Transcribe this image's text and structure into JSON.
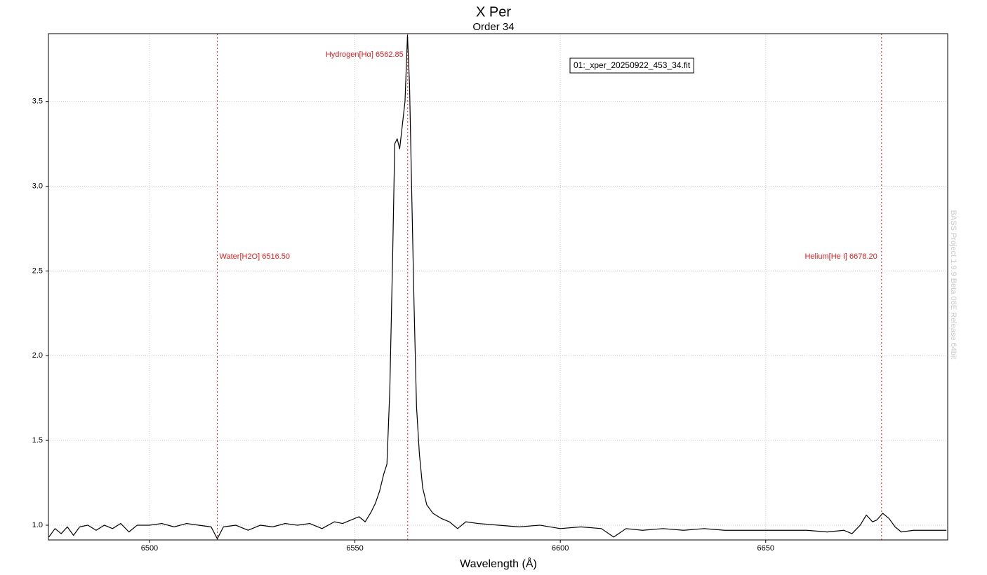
{
  "chart_data": {
    "type": "line",
    "title": "X Per",
    "subtitle": "Order 34",
    "x_label": "Wavelength (Å)",
    "watermark": "BASS Project 1.9.9 Beta 08E Release 64bit",
    "xlim": [
      6475.4,
      6694.3
    ],
    "ylim": [
      0.913,
      3.9
    ],
    "xticks": [
      6500,
      6550,
      6600,
      6650
    ],
    "yticks": [
      {
        "value": 1,
        "label": "1.0"
      },
      1.5,
      {
        "value": 2,
        "label": "2.0"
      },
      2.5,
      {
        "value": 3,
        "label": "3.0"
      },
      3.5
    ],
    "grid": true,
    "legend": "top-right",
    "x": [
      6475.5,
      6477,
      6478.5,
      6480,
      6481.5,
      6483,
      6485,
      6487,
      6489,
      6491,
      6493,
      6495,
      6497,
      6500,
      6503,
      6506,
      6509,
      6512,
      6515,
      6516.5,
      6518,
      6521,
      6524,
      6527,
      6530,
      6533,
      6536,
      6539,
      6542,
      6545,
      6547,
      6549,
      6551,
      6552.5,
      6554,
      6555,
      6556,
      6557,
      6557.8,
      6558.5,
      6559.2,
      6559.7,
      6560.3,
      6560.9,
      6561.5,
      6562.2,
      6562.8,
      6563.3,
      6563.8,
      6564.4,
      6565,
      6565.7,
      6566.5,
      6567.5,
      6569,
      6571,
      6573,
      6575,
      6577,
      6580,
      6585,
      6590,
      6595,
      6600,
      6605,
      6610,
      6613,
      6616,
      6620,
      6625,
      6630,
      6635,
      6640,
      6645,
      6650,
      6655,
      6660,
      6665,
      6669,
      6671,
      6673,
      6674.5,
      6676,
      6677,
      6678.5,
      6680,
      6681.5,
      6683,
      6686,
      6690,
      6694
    ],
    "series": [
      {
        "name": "01:_xper_20250922_453_34.fit",
        "color": "#000000",
        "values": [
          0.93,
          0.98,
          0.95,
          0.99,
          0.94,
          0.99,
          1.0,
          0.97,
          1.0,
          0.98,
          1.01,
          0.96,
          1.0,
          1.0,
          1.01,
          0.99,
          1.01,
          1.0,
          0.99,
          0.92,
          0.99,
          1.0,
          0.97,
          1.0,
          0.99,
          1.01,
          1.0,
          1.01,
          0.98,
          1.02,
          1.01,
          1.03,
          1.05,
          1.02,
          1.08,
          1.13,
          1.2,
          1.3,
          1.36,
          1.8,
          2.6,
          3.25,
          3.28,
          3.22,
          3.35,
          3.5,
          3.89,
          3.6,
          3.0,
          2.3,
          1.7,
          1.42,
          1.22,
          1.12,
          1.07,
          1.04,
          1.02,
          0.98,
          1.02,
          1.01,
          1.0,
          0.99,
          1.0,
          0.98,
          0.99,
          0.98,
          0.93,
          0.98,
          0.97,
          0.98,
          0.97,
          0.98,
          0.97,
          0.97,
          0.97,
          0.97,
          0.97,
          0.96,
          0.97,
          0.95,
          1.0,
          1.06,
          1.02,
          1.03,
          1.07,
          1.04,
          0.99,
          0.96,
          0.97,
          0.97,
          0.97
        ]
      }
    ],
    "markers_color": "#e02020",
    "markers": [
      {
        "x": 6516.5,
        "label": "Water[H2O] 6516.50"
      },
      {
        "x": 6562.85,
        "label": "Hydrogen[Hα] 6562.85"
      },
      {
        "x": 6678.2,
        "label": "Helium[He I] 6678.20"
      }
    ]
  }
}
